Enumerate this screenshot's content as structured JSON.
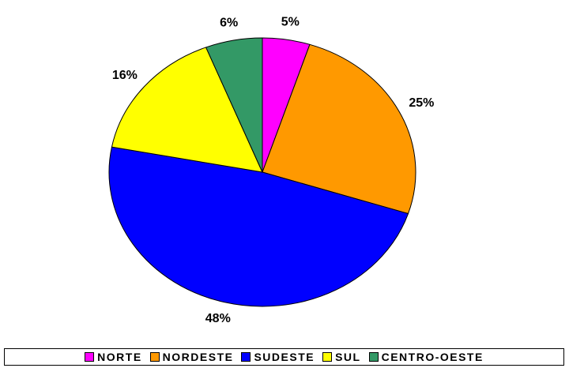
{
  "chart_data": {
    "type": "pie",
    "categories": [
      "NORTE",
      "NORDESTE",
      "SUDESTE",
      "SUL",
      "CENTRO-OESTE"
    ],
    "values": [
      5,
      25,
      48,
      16,
      6
    ],
    "value_labels": [
      "5%",
      "25%",
      "48%",
      "16%",
      "6%"
    ],
    "colors": [
      "#ff00ff",
      "#ff9900",
      "#0000ff",
      "#ffff00",
      "#339966"
    ],
    "legend": "bottom"
  }
}
